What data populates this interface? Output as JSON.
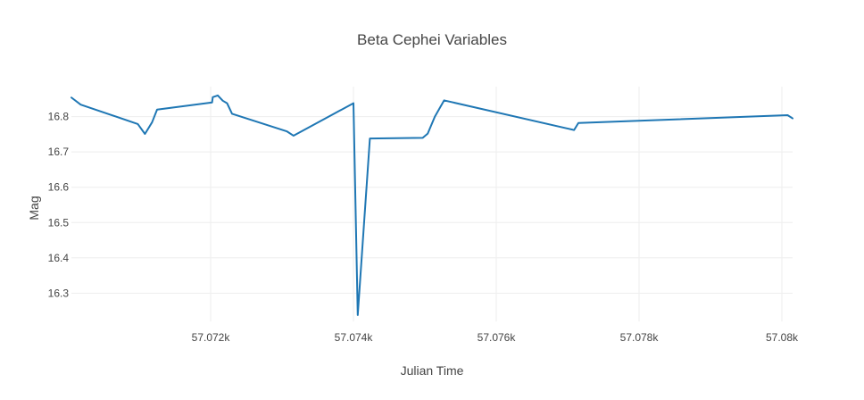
{
  "chart_data": {
    "type": "line",
    "title": "Beta Cephei Variables",
    "xlabel": "Julian Time",
    "ylabel": "Mag",
    "xlim": [
      57070.05,
      57080.15
    ],
    "ylim": [
      16.22,
      16.885
    ],
    "x_ticks": [
      {
        "value": 57072,
        "label": "57.072k"
      },
      {
        "value": 57074,
        "label": "57.074k"
      },
      {
        "value": 57076,
        "label": "57.076k"
      },
      {
        "value": 57078,
        "label": "57.078k"
      },
      {
        "value": 57080,
        "label": "57.08k"
      }
    ],
    "y_ticks": [
      {
        "value": 16.3,
        "label": "16.3"
      },
      {
        "value": 16.4,
        "label": "16.4"
      },
      {
        "value": 16.5,
        "label": "16.5"
      },
      {
        "value": 16.6,
        "label": "16.6"
      },
      {
        "value": 16.7,
        "label": "16.7"
      },
      {
        "value": 16.8,
        "label": "16.8"
      }
    ],
    "grid": true,
    "legend": false,
    "series": [
      {
        "color": "#1f77b4",
        "x": [
          57070.05,
          57070.18,
          57070.98,
          57071.08,
          57071.18,
          57071.25,
          57072.02,
          57072.03,
          57072.1,
          57072.17,
          57072.23,
          57072.3,
          57073.07,
          57073.16,
          57074.0,
          57074.06,
          57074.23,
          57074.97,
          57075.04,
          57075.14,
          57075.27,
          57077.09,
          57077.15,
          57080.08,
          57080.15
        ],
        "y": [
          16.854,
          16.834,
          16.779,
          16.751,
          16.784,
          16.82,
          16.84,
          16.855,
          16.86,
          16.845,
          16.838,
          16.808,
          16.758,
          16.746,
          16.838,
          16.238,
          16.738,
          16.74,
          16.752,
          16.8,
          16.846,
          16.762,
          16.782,
          16.804,
          16.795
        ]
      }
    ]
  }
}
